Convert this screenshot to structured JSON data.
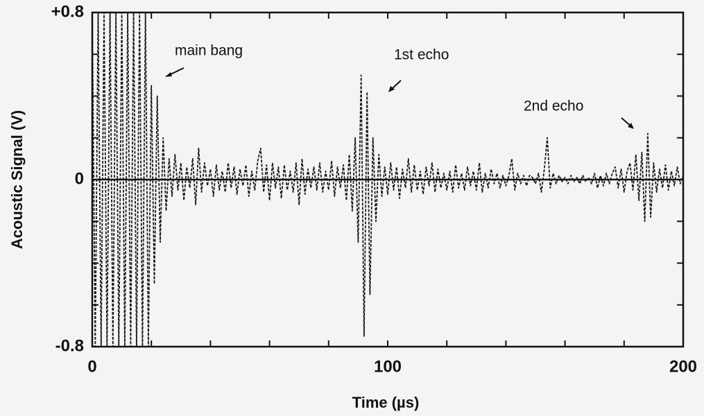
{
  "chart_data": {
    "type": "line",
    "xlabel": "Time (µs)",
    "ylabel": "Acoustic Signal (V)",
    "annotations": [
      "main bang",
      "1st echo",
      "2nd echo"
    ],
    "xlim": [
      0,
      200
    ],
    "ylim": [
      -0.8,
      0.8
    ],
    "xticks": [
      0,
      100,
      200
    ],
    "xminorticks": [
      20,
      40,
      60,
      80,
      120,
      140,
      160,
      180
    ],
    "yticks": [
      {
        "value": 0.8,
        "label": "+0.8"
      },
      0,
      -0.8
    ],
    "yminorticks": [
      0.6,
      0.4,
      0.2,
      -0.2,
      -0.4,
      -0.6
    ],
    "x": [
      0,
      1,
      2,
      3,
      4,
      5,
      6,
      7,
      8,
      9,
      10,
      11,
      12,
      13,
      14,
      15,
      16,
      17,
      18,
      19,
      20,
      21,
      22,
      23,
      24,
      25,
      26,
      27,
      28,
      29,
      30,
      31,
      32,
      33,
      34,
      35,
      36,
      37,
      38,
      39,
      40,
      41,
      42,
      43,
      44,
      45,
      46,
      47,
      48,
      49,
      50,
      51,
      52,
      53,
      54,
      55,
      56,
      57,
      58,
      59,
      60,
      61,
      62,
      63,
      64,
      65,
      66,
      67,
      68,
      69,
      70,
      71,
      72,
      73,
      74,
      75,
      76,
      77,
      78,
      79,
      80,
      81,
      82,
      83,
      84,
      85,
      86,
      87,
      88,
      89,
      90,
      91,
      92,
      93,
      94,
      95,
      96,
      97,
      98,
      99,
      100,
      101,
      102,
      103,
      104,
      105,
      106,
      107,
      108,
      109,
      110,
      111,
      112,
      113,
      114,
      115,
      116,
      117,
      118,
      119,
      120,
      121,
      122,
      123,
      124,
      125,
      126,
      127,
      128,
      129,
      130,
      131,
      132,
      133,
      134,
      135,
      136,
      137,
      138,
      139,
      140,
      141,
      142,
      143,
      144,
      145,
      146,
      147,
      148,
      149,
      150,
      151,
      152,
      153,
      154,
      155,
      156,
      157,
      158,
      159,
      160,
      161,
      162,
      163,
      164,
      165,
      166,
      167,
      168,
      169,
      170,
      171,
      172,
      173,
      174,
      175,
      176,
      177,
      178,
      179,
      180,
      181,
      182,
      183,
      184,
      185,
      186,
      187,
      188,
      189,
      190,
      191,
      192,
      193,
      194,
      195,
      196,
      197,
      198,
      199,
      200
    ],
    "series": [
      {
        "color": "#1a1a1a",
        "values": [
          0.8,
          -0.8,
          0.8,
          -0.8,
          0.8,
          -0.8,
          0.8,
          -0.8,
          0.8,
          -0.8,
          0.8,
          -0.8,
          0.8,
          -0.8,
          0.8,
          -0.8,
          0.8,
          -0.8,
          0.8,
          -0.8,
          0.45,
          -0.5,
          0.4,
          -0.3,
          0.2,
          -0.15,
          0.1,
          -0.08,
          0.12,
          -0.05,
          0.08,
          -0.1,
          0.06,
          -0.04,
          0.1,
          -0.12,
          0.15,
          -0.06,
          0.08,
          -0.03,
          0.05,
          -0.08,
          0.07,
          -0.05,
          0.04,
          -0.06,
          0.08,
          -0.04,
          0.06,
          -0.07,
          0.05,
          -0.03,
          0.07,
          -0.08,
          0.04,
          -0.05,
          0.09,
          0.15,
          -0.06,
          0.07,
          -0.1,
          0.08,
          -0.04,
          0.06,
          -0.09,
          0.07,
          -0.05,
          0.04,
          -0.06,
          0.08,
          -0.12,
          0.1,
          -0.07,
          0.05,
          -0.04,
          0.06,
          -0.05,
          0.08,
          -0.06,
          0.04,
          -0.05,
          0.09,
          -0.08,
          0.06,
          -0.04,
          0.07,
          -0.1,
          0.12,
          -0.15,
          0.2,
          -0.3,
          0.5,
          -0.75,
          0.42,
          -0.55,
          0.2,
          -0.2,
          0.12,
          -0.08,
          0.06,
          -0.07,
          0.08,
          -0.05,
          0.06,
          -0.09,
          0.05,
          -0.04,
          0.1,
          -0.06,
          0.07,
          -0.05,
          0.04,
          -0.07,
          0.06,
          -0.03,
          0.08,
          -0.06,
          0.05,
          -0.04,
          0.03,
          -0.05,
          0.04,
          -0.06,
          0.07,
          -0.04,
          0.03,
          -0.05,
          0.06,
          -0.03,
          0.04,
          -0.05,
          0.08,
          -0.06,
          0.03,
          -0.04,
          0.05,
          -0.02,
          0.03,
          -0.04,
          0.02,
          -0.03,
          0.02,
          0.1,
          -0.05,
          0.03,
          -0.02,
          0.02,
          -0.03,
          0.02,
          0.01,
          -0.02,
          0.03,
          -0.06,
          0.05,
          0.2,
          -0.04,
          0.03,
          -0.02,
          0.02,
          -0.01,
          0.01,
          -0.02,
          0.02,
          -0.01,
          0.01,
          -0.02,
          0.02,
          -0.01,
          0.01,
          -0.02,
          0.03,
          -0.04,
          0.02,
          -0.03,
          0.03,
          -0.02,
          0.03,
          0.06,
          -0.04,
          0.05,
          -0.06,
          0.04,
          0.08,
          -0.05,
          0.12,
          -0.1,
          0.13,
          -0.2,
          0.22,
          -0.18,
          0.08,
          -0.06,
          0.05,
          -0.04,
          0.07,
          -0.05,
          0.04,
          -0.03,
          0.06,
          -0.02,
          0.02
        ]
      }
    ]
  }
}
